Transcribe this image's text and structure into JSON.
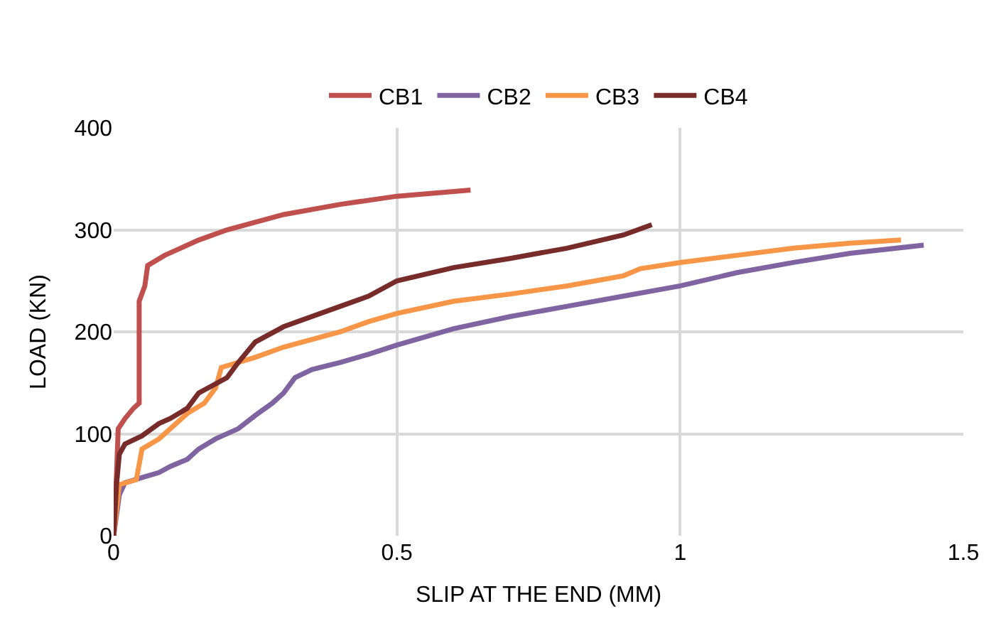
{
  "chart_data": {
    "type": "line",
    "xlabel": "SLIP AT THE END (MM)",
    "ylabel": "LOAD (KN)",
    "xlim": [
      0,
      1.5
    ],
    "xticks": [
      0,
      0.5,
      1,
      1.5
    ],
    "ylim": [
      0,
      400
    ],
    "yticks": [
      0,
      100,
      200,
      300,
      400
    ],
    "grid": true,
    "legend": "top",
    "marker": "none",
    "line_style": "solid",
    "series": [
      {
        "name": "CB1",
        "color": "#c0504d",
        "x": [
          0,
          0.005,
          0.008,
          0.02,
          0.035,
          0.045,
          0.045,
          0.055,
          0.06,
          0.09,
          0.15,
          0.2,
          0.3,
          0.4,
          0.5,
          0.63
        ],
        "values": [
          0,
          60,
          105,
          115,
          125,
          130,
          230,
          245,
          265,
          275,
          290,
          300,
          315,
          325,
          333,
          339
        ]
      },
      {
        "name": "CB2",
        "color": "#8064a2",
        "x": [
          0,
          0.01,
          0.02,
          0.05,
          0.08,
          0.1,
          0.13,
          0.15,
          0.18,
          0.22,
          0.25,
          0.28,
          0.3,
          0.32,
          0.35,
          0.4,
          0.45,
          0.5,
          0.6,
          0.7,
          0.8,
          0.9,
          1.0,
          1.1,
          1.2,
          1.3,
          1.43
        ],
        "values": [
          0,
          40,
          52,
          57,
          62,
          68,
          75,
          85,
          95,
          105,
          118,
          130,
          140,
          155,
          163,
          170,
          178,
          187,
          203,
          215,
          225,
          235,
          245,
          258,
          268,
          277,
          285
        ]
      },
      {
        "name": "CB3",
        "color": "#f79646",
        "x": [
          0,
          0.01,
          0.04,
          0.05,
          0.08,
          0.1,
          0.13,
          0.16,
          0.18,
          0.19,
          0.25,
          0.3,
          0.4,
          0.45,
          0.5,
          0.6,
          0.7,
          0.8,
          0.9,
          0.93,
          1.0,
          1.1,
          1.2,
          1.3,
          1.39
        ],
        "values": [
          0,
          50,
          55,
          85,
          95,
          105,
          120,
          130,
          145,
          165,
          175,
          185,
          200,
          210,
          218,
          230,
          237,
          245,
          255,
          262,
          268,
          275,
          282,
          287,
          290
        ]
      },
      {
        "name": "CB4",
        "color": "#772c2a",
        "x": [
          0,
          0.005,
          0.01,
          0.02,
          0.05,
          0.08,
          0.1,
          0.13,
          0.15,
          0.2,
          0.22,
          0.25,
          0.3,
          0.4,
          0.45,
          0.5,
          0.6,
          0.7,
          0.8,
          0.9,
          0.95
        ],
        "values": [
          0,
          50,
          80,
          90,
          98,
          110,
          115,
          125,
          140,
          155,
          170,
          190,
          205,
          225,
          235,
          250,
          263,
          272,
          282,
          295,
          305
        ]
      }
    ]
  }
}
